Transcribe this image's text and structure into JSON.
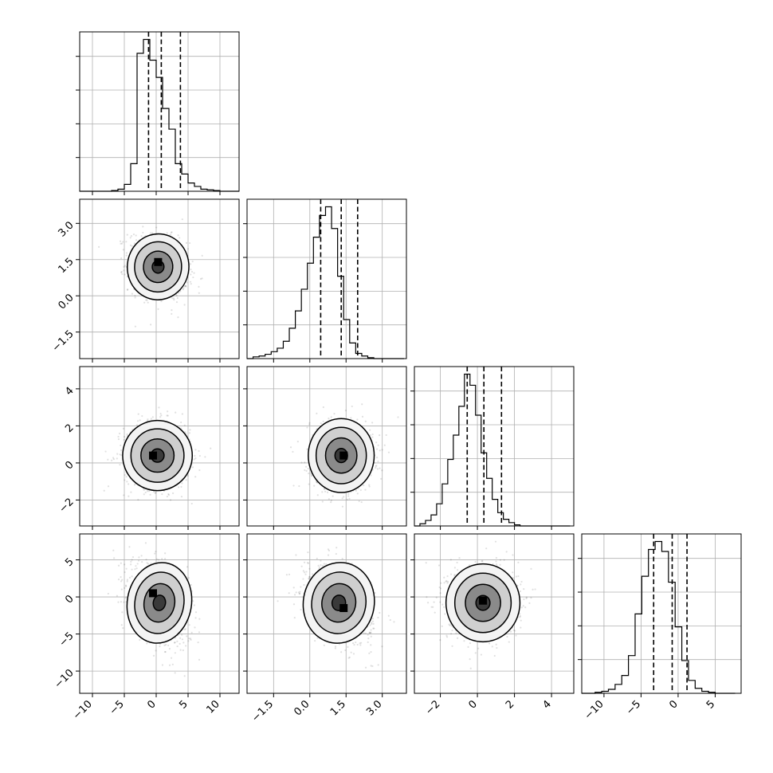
{
  "chart_data": {
    "type": "corner",
    "parameters": 4,
    "grid_lines": true,
    "axes": [
      {
        "range": [
          -12,
          13
        ],
        "ticks": [
          -10,
          -5,
          0,
          5,
          10
        ],
        "tick_labels": [
          "−10",
          "−5",
          "0",
          "5",
          "10"
        ],
        "quantiles": [
          -1.2,
          0.8,
          3.8
        ],
        "hist_start": -12,
        "hist_bin": 1,
        "hist_counts": [
          0,
          0,
          0,
          0,
          0,
          1,
          3,
          10,
          40,
          200,
          220,
          190,
          165,
          120,
          90,
          40,
          25,
          12,
          7,
          3,
          2,
          1,
          0,
          0,
          0
        ]
      },
      {
        "range": [
          -2.6,
          4.0
        ],
        "ticks": [
          -1.5,
          0.0,
          1.5,
          3.0
        ],
        "tick_labels": [
          "−1.5",
          "0.0",
          "1.5",
          "3.0"
        ],
        "quantiles": [
          0.45,
          1.3,
          1.98
        ],
        "hist_start": -2.6,
        "hist_bin": 0.25,
        "hist_counts": [
          0,
          2,
          3,
          5,
          8,
          12,
          20,
          35,
          55,
          80,
          110,
          140,
          165,
          175,
          150,
          95,
          45,
          18,
          6,
          3,
          1,
          0,
          0,
          0,
          0,
          0
        ]
      },
      {
        "range": [
          -3.4,
          5.2
        ],
        "ticks": [
          -2,
          0,
          2,
          4
        ],
        "tick_labels": [
          "−2",
          "0",
          "2",
          "4"
        ],
        "quantiles": [
          -0.55,
          0.35,
          1.3
        ],
        "hist_start": -3.4,
        "hist_bin": 0.3,
        "hist_counts": [
          0,
          2,
          5,
          10,
          20,
          38,
          60,
          82,
          108,
          137,
          127,
          100,
          66,
          43,
          24,
          12,
          6,
          3,
          1,
          0,
          0,
          0,
          0,
          0,
          0,
          0,
          0,
          0
        ]
      },
      {
        "range": [
          -13,
          8.5
        ],
        "ticks": [
          -10,
          -5,
          0,
          5
        ],
        "tick_labels": [
          "−10",
          "−5",
          "0",
          "5"
        ],
        "quantiles": [
          -3.3,
          -0.8,
          1.2
        ],
        "hist_start": -13,
        "hist_bin": 0.9,
        "hist_counts": [
          0,
          0,
          1,
          2,
          4,
          9,
          18,
          38,
          80,
          118,
          145,
          153,
          143,
          112,
          67,
          33,
          13,
          5,
          2,
          1,
          0,
          0,
          0
        ]
      }
    ],
    "panels_2d": [
      {
        "x_param": 0,
        "y_param": 1,
        "center": [
          0.3,
          1.2
        ],
        "sd": [
          2.3,
          0.65
        ],
        "rho": -0.2,
        "mode": [
          0.3,
          1.4
        ],
        "contour_levels": [
          0.4,
          1.0,
          1.6,
          2.1
        ]
      },
      {
        "x_param": 0,
        "y_param": 2,
        "center": [
          0.2,
          0.4
        ],
        "sd": [
          2.6,
          0.9
        ],
        "rho": 0.0,
        "mode": [
          -0.5,
          0.4
        ],
        "contour_levels": [
          0.4,
          1.0,
          1.6,
          2.1
        ]
      },
      {
        "x_param": 1,
        "y_param": 2,
        "center": [
          1.3,
          0.4
        ],
        "sd": [
          0.65,
          0.95
        ],
        "rho": 0.0,
        "mode": [
          1.4,
          0.4
        ],
        "contour_levels": [
          0.4,
          1.0,
          1.6,
          2.1
        ]
      },
      {
        "x_param": 0,
        "y_param": 3,
        "center": [
          0.5,
          -0.8
        ],
        "sd": [
          2.4,
          2.6
        ],
        "rho": -0.4,
        "mode": [
          -0.5,
          0.5
        ],
        "contour_levels": [
          0.4,
          1.0,
          1.6,
          2.1
        ]
      },
      {
        "x_param": 1,
        "y_param": 3,
        "center": [
          1.2,
          -0.8
        ],
        "sd": [
          0.7,
          2.6
        ],
        "rho": -0.4,
        "mode": [
          1.4,
          -1.5
        ],
        "contour_levels": [
          0.4,
          1.0,
          1.6,
          2.1
        ]
      },
      {
        "x_param": 2,
        "y_param": 3,
        "center": [
          0.3,
          -0.8
        ],
        "sd": [
          0.95,
          2.5
        ],
        "rho": 0.0,
        "mode": [
          0.3,
          -0.5
        ],
        "contour_levels": [
          0.4,
          1.0,
          1.6,
          2.1
        ]
      }
    ],
    "title": "",
    "legend": "none"
  }
}
